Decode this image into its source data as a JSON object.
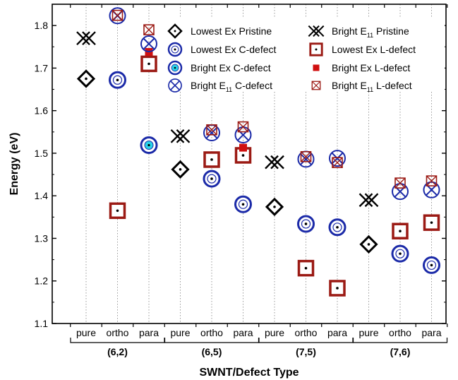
{
  "chart_data": {
    "type": "scatter",
    "title": "",
    "xlabel": "SWNT/Defect Type",
    "ylabel": "Energy (eV)",
    "ylim": [
      1.1,
      1.85
    ],
    "yticks": [
      "1.1",
      "1.2",
      "1.3",
      "1.4",
      "1.5",
      "1.6",
      "1.7",
      "1.8"
    ],
    "grid": "vertical dotted lines at each category",
    "legend_position": "top-right",
    "categories": [
      "pure",
      "ortho",
      "para",
      "pure",
      "ortho",
      "para",
      "pure",
      "ortho",
      "para",
      "pure",
      "ortho",
      "para"
    ],
    "groups": [
      {
        "label": "(6,2)",
        "span": [
          0,
          2
        ]
      },
      {
        "label": "(6,5)",
        "span": [
          3,
          5
        ]
      },
      {
        "label": "(7,5)",
        "span": [
          6,
          8
        ]
      },
      {
        "label": "(7,6)",
        "span": [
          9,
          11
        ]
      }
    ],
    "series": [
      {
        "name": "Lowest Ex Pristine",
        "marker": "diamond-dot",
        "color": "#000000",
        "points": [
          {
            "x": 0,
            "y": 1.675
          },
          {
            "x": 3,
            "y": 1.462
          },
          {
            "x": 6,
            "y": 1.374
          },
          {
            "x": 9,
            "y": 1.286
          }
        ]
      },
      {
        "name": "Bright E11 Pristine",
        "marker": "double-x",
        "color": "#000000",
        "points": [
          {
            "x": 0,
            "y": 1.77
          },
          {
            "x": 3,
            "y": 1.54
          },
          {
            "x": 6,
            "y": 1.479
          },
          {
            "x": 9,
            "y": 1.39
          }
        ]
      },
      {
        "name": "Lowest Ex C-defect",
        "marker": "circle-dot",
        "color": "#1b2aa8",
        "points": [
          {
            "x": 1,
            "y": 1.672
          },
          {
            "x": 4,
            "y": 1.44
          },
          {
            "x": 5,
            "y": 1.38
          },
          {
            "x": 7,
            "y": 1.334
          },
          {
            "x": 8,
            "y": 1.326
          },
          {
            "x": 10,
            "y": 1.264
          },
          {
            "x": 11,
            "y": 1.237
          }
        ]
      },
      {
        "name": "Lowest Ex L-defect",
        "marker": "square-dot",
        "color": "#9b1a14",
        "points": [
          {
            "x": 1,
            "y": 1.365
          },
          {
            "x": 2,
            "y": 1.71
          },
          {
            "x": 4,
            "y": 1.485
          },
          {
            "x": 5,
            "y": 1.495
          },
          {
            "x": 7,
            "y": 1.23
          },
          {
            "x": 8,
            "y": 1.183
          },
          {
            "x": 10,
            "y": 1.317
          },
          {
            "x": 11,
            "y": 1.337
          }
        ]
      },
      {
        "name": "Bright Ex C-defect",
        "marker": "circle-cyan",
        "color": "#1b2aa8",
        "points": [
          {
            "x": 2,
            "y": 1.519
          }
        ]
      },
      {
        "name": "Bright Ex L-defect",
        "marker": "square-filled",
        "color": "#d01010",
        "points": [
          {
            "x": 2,
            "y": 1.738
          },
          {
            "x": 5,
            "y": 1.513
          }
        ]
      },
      {
        "name": "Bright E11 C-defect",
        "marker": "circle-x",
        "color": "#1b2aa8",
        "points": [
          {
            "x": 1,
            "y": 1.823
          },
          {
            "x": 2,
            "y": 1.757
          },
          {
            "x": 4,
            "y": 1.548
          },
          {
            "x": 5,
            "y": 1.543
          },
          {
            "x": 7,
            "y": 1.486
          },
          {
            "x": 8,
            "y": 1.488
          },
          {
            "x": 10,
            "y": 1.41
          },
          {
            "x": 11,
            "y": 1.414
          }
        ]
      },
      {
        "name": "Bright E11 L-defect",
        "marker": "square-x",
        "color": "#9b1a14",
        "points": [
          {
            "x": 1,
            "y": 1.824
          },
          {
            "x": 2,
            "y": 1.79
          },
          {
            "x": 4,
            "y": 1.555
          },
          {
            "x": 5,
            "y": 1.562
          },
          {
            "x": 7,
            "y": 1.492
          },
          {
            "x": 8,
            "y": 1.478
          },
          {
            "x": 10,
            "y": 1.43
          },
          {
            "x": 11,
            "y": 1.435
          }
        ]
      }
    ],
    "legend": [
      {
        "marker": "diamond-dot",
        "label": "Lowest Ex Pristine"
      },
      {
        "marker": "double-x",
        "label": "Bright E",
        "sub": "11",
        "suffix": " Pristine"
      },
      {
        "marker": "circle-dot",
        "label": "Lowest Ex C-defect"
      },
      {
        "marker": "square-dot",
        "label": "Lowest Ex L-defect"
      },
      {
        "marker": "circle-cyan",
        "label": "Bright Ex C-defect"
      },
      {
        "marker": "square-filled",
        "label": "Bright Ex L-defect"
      },
      {
        "marker": "circle-x",
        "label": "Bright E",
        "sub": "11",
        "suffix": " C-defect"
      },
      {
        "marker": "square-x",
        "label": "Bright E",
        "sub": "11",
        "suffix": " L-defect"
      }
    ],
    "colors": {
      "blue": "#1b2aa8",
      "darkred": "#9b1a14",
      "red": "#d01010",
      "cyan": "#29d4e8",
      "black": "#000000"
    }
  }
}
